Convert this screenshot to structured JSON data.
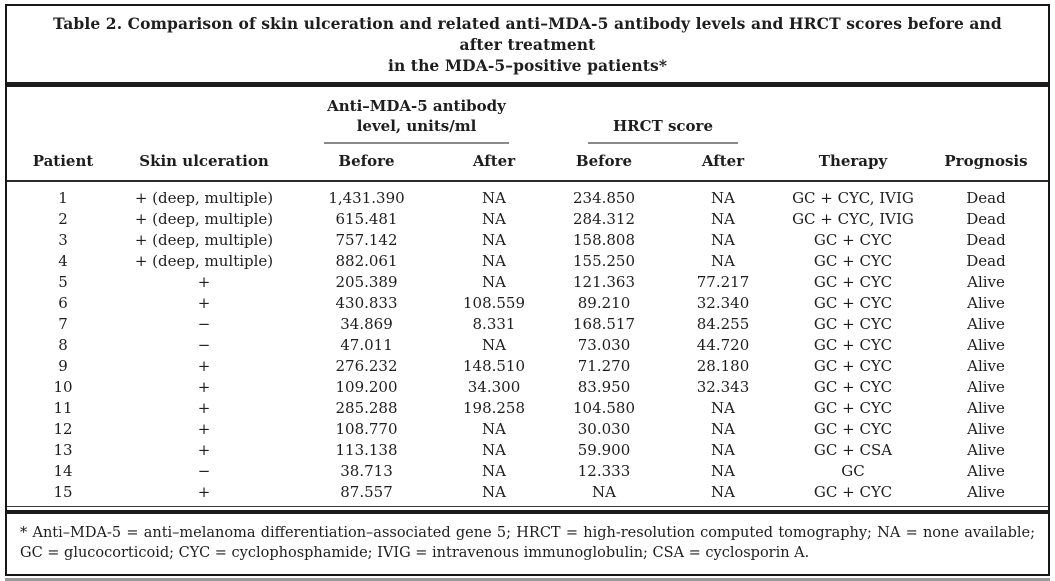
{
  "title": {
    "line1": "Table 2.  Comparison of skin ulceration and related anti–MDA-5 antibody levels and HRCT scores before and after treatment",
    "line2": "in the MDA-5–positive patients*"
  },
  "headers": {
    "group_antibody_line1": "Anti–MDA-5 antibody",
    "group_antibody_line2": "level, units/ml",
    "group_hrct": "HRCT score",
    "columns": [
      "Patient",
      "Skin ulceration",
      "Before",
      "After",
      "Before",
      "After",
      "Therapy",
      "Prognosis"
    ]
  },
  "table": {
    "rows": [
      [
        "1",
        "+ (deep, multiple)",
        "1,431.390",
        "NA",
        "234.850",
        "NA",
        "GC + CYC, IVIG",
        "Dead"
      ],
      [
        "2",
        "+ (deep, multiple)",
        "615.481",
        "NA",
        "284.312",
        "NA",
        "GC + CYC, IVIG",
        "Dead"
      ],
      [
        "3",
        "+ (deep, multiple)",
        "757.142",
        "NA",
        "158.808",
        "NA",
        "GC + CYC",
        "Dead"
      ],
      [
        "4",
        "+ (deep, multiple)",
        "882.061",
        "NA",
        "155.250",
        "NA",
        "GC + CYC",
        "Dead"
      ],
      [
        "5",
        "+",
        "205.389",
        "NA",
        "121.363",
        "77.217",
        "GC + CYC",
        "Alive"
      ],
      [
        "6",
        "+",
        "430.833",
        "108.559",
        "89.210",
        "32.340",
        "GC + CYC",
        "Alive"
      ],
      [
        "7",
        "−",
        "34.869",
        "8.331",
        "168.517",
        "84.255",
        "GC + CYC",
        "Alive"
      ],
      [
        "8",
        "−",
        "47.011",
        "NA",
        "73.030",
        "44.720",
        "GC + CYC",
        "Alive"
      ],
      [
        "9",
        "+",
        "276.232",
        "148.510",
        "71.270",
        "28.180",
        "GC + CYC",
        "Alive"
      ],
      [
        "10",
        "+",
        "109.200",
        "34.300",
        "83.950",
        "32.343",
        "GC + CYC",
        "Alive"
      ],
      [
        "11",
        "+",
        "285.288",
        "198.258",
        "104.580",
        "NA",
        "GC + CYC",
        "Alive"
      ],
      [
        "12",
        "+",
        "108.770",
        "NA",
        "30.030",
        "NA",
        "GC + CYC",
        "Alive"
      ],
      [
        "13",
        "+",
        "113.138",
        "NA",
        "59.900",
        "NA",
        "GC + CSA",
        "Alive"
      ],
      [
        "14",
        "−",
        "38.713",
        "NA",
        "12.333",
        "NA",
        "GC",
        "Alive"
      ],
      [
        "15",
        "+",
        "87.557",
        "NA",
        "NA",
        "NA",
        "GC + CYC",
        "Alive"
      ]
    ]
  },
  "footnote": "* Anti–MDA-5 = anti–melanoma differentiation–associated gene 5; HRCT = high-resolution computed tomography; NA = none available; GC = glucocorticoid; CYC = cyclophosphamide; IVIG = intravenous immunoglobulin; CSA = cyclosporin A.",
  "colors": {
    "text": "#1e1e1e",
    "rule_dark": "#1c1c1c",
    "rule_gray": "#8a8a8a",
    "border": "#171717",
    "shadow": "#9a9a9a"
  }
}
